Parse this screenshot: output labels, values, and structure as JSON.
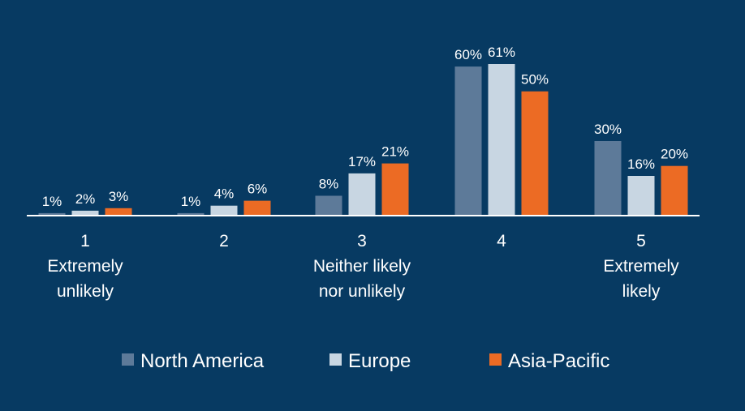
{
  "chart_data": {
    "type": "bar",
    "categories": [
      [
        "1",
        "Extremely",
        "unlikely"
      ],
      [
        "2"
      ],
      [
        "3",
        "Neither likely",
        "nor unlikely"
      ],
      [
        "4"
      ],
      [
        "5",
        "Extremely",
        "likely"
      ]
    ],
    "series": [
      {
        "name": "North America",
        "color": "#5d7a99",
        "values": [
          1,
          1,
          8,
          60,
          30
        ],
        "labels": [
          "1%",
          "1%",
          "8%",
          "60%",
          "30%"
        ]
      },
      {
        "name": "Europe",
        "color": "#c8d6e2",
        "values": [
          2,
          4,
          17,
          61,
          16
        ],
        "labels": [
          "2%",
          "4%",
          "17%",
          "61%",
          "16%"
        ]
      },
      {
        "name": "Asia-Pacific",
        "color": "#ec6b24",
        "values": [
          3,
          6,
          21,
          50,
          20
        ],
        "labels": [
          "3%",
          "6%",
          "21%",
          "50%",
          "20%"
        ]
      }
    ],
    "ylim": [
      0,
      61
    ],
    "grid": false,
    "legend_position": "bottom",
    "background": "#073a62",
    "axis_color": "#ffffff"
  }
}
